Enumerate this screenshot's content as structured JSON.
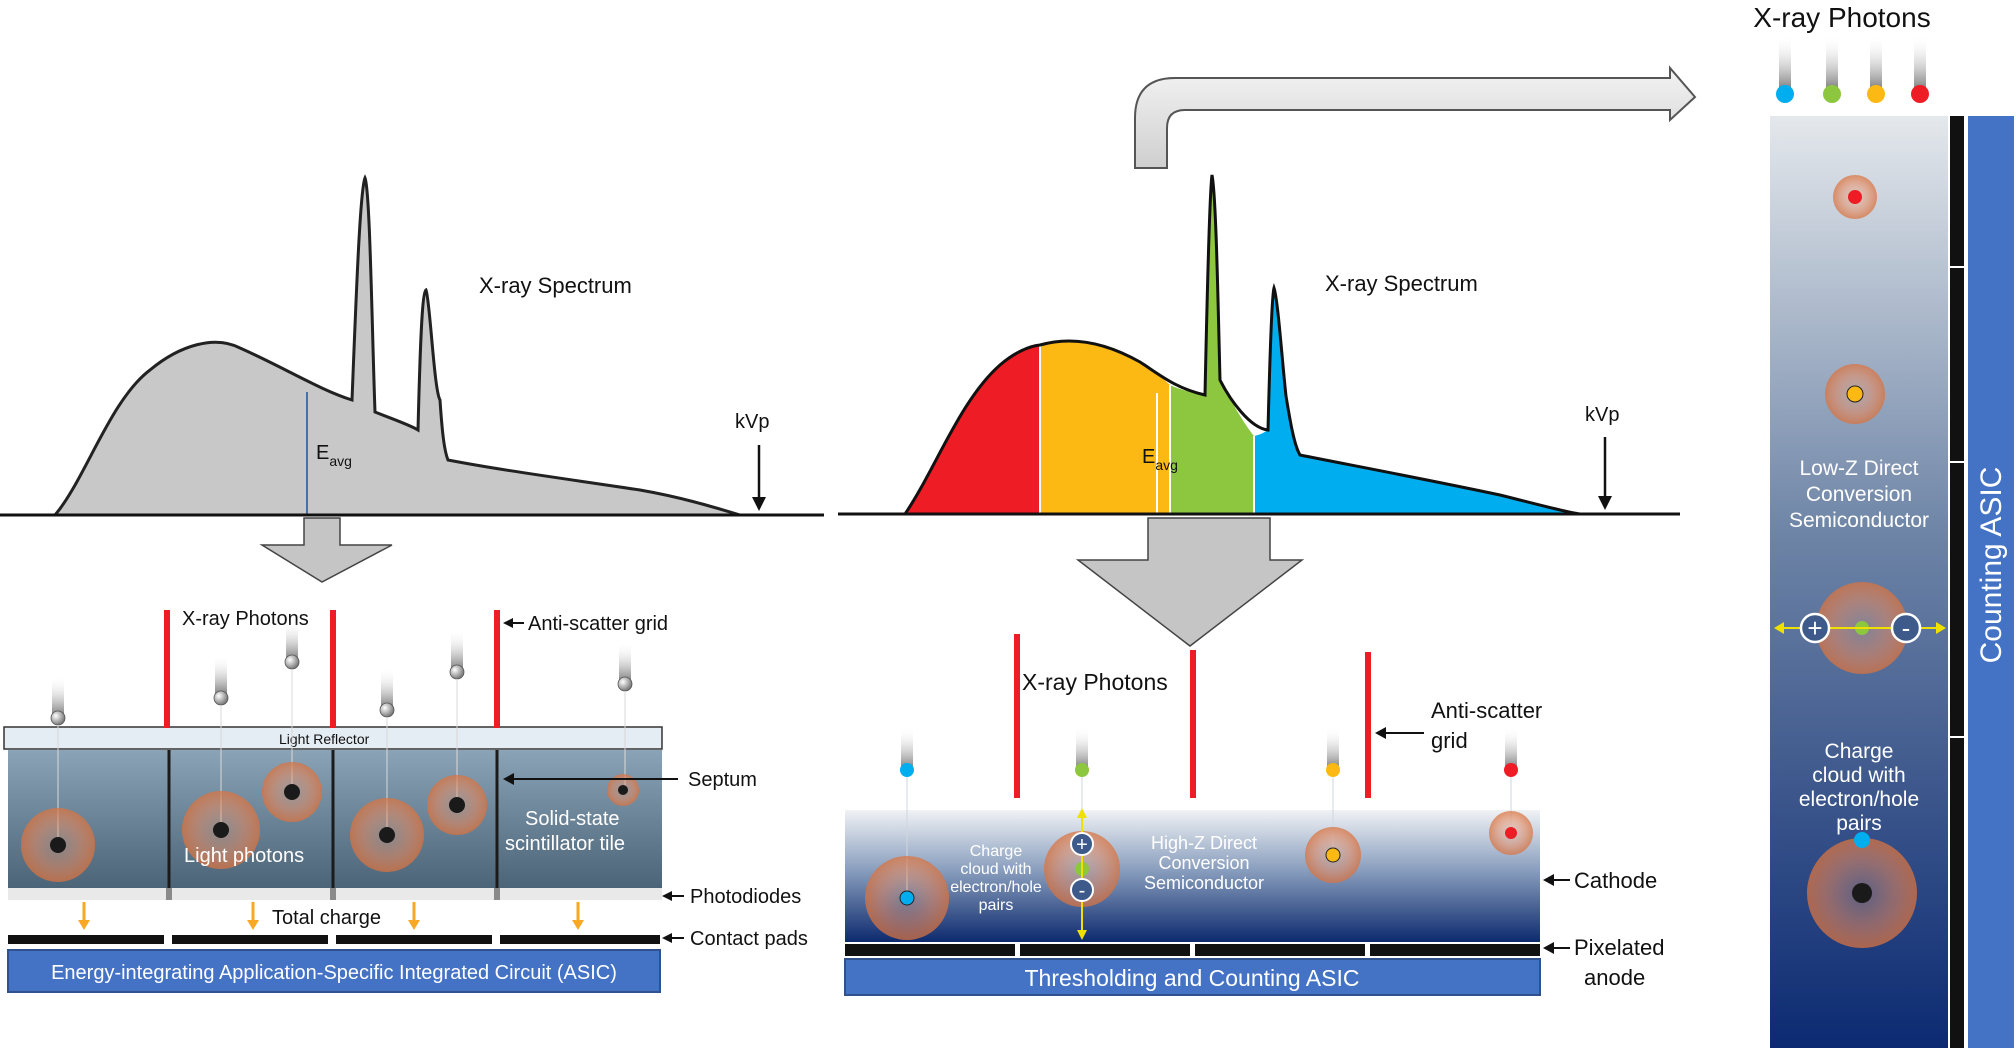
{
  "left_panel": {
    "spectrum_label": "X-ray Spectrum",
    "eavg_main": "E",
    "eavg_sub": "avg",
    "kvp_label": "kVp",
    "photons_label": "X-ray Photons",
    "antiscatter_label": "Anti-scatter grid",
    "light_reflector_label": "Light Reflector",
    "septum_label": "Septum",
    "light_photons_label": "Light photons",
    "scintillator_line1": "Solid-state",
    "scintillator_line2": "scintillator tile",
    "photodiodes_label": "Photodiodes",
    "total_charge_label": "Total charge",
    "contact_pads_label": "Contact pads",
    "asic_label": "Energy-integrating Application-Specific Integrated Circuit (ASIC)"
  },
  "middle_panel": {
    "spectrum_label": "X-ray Spectrum",
    "eavg_main": "E",
    "eavg_sub": "avg",
    "kvp_label": "kVp",
    "photons_label": "X-ray Photons",
    "antiscatter_line1": "Anti-scatter",
    "antiscatter_line2": "grid",
    "charge_cloud_lines": [
      "Charge",
      "cloud with",
      "electron/hole",
      "pairs"
    ],
    "semiconductor_lines": [
      "High-Z Direct",
      "Conversion",
      "Semiconductor"
    ],
    "cathode_label": "Cathode",
    "anode_line1": "Pixelated",
    "anode_line2": "anode",
    "asic_label": "Thresholding and Counting ASIC",
    "plus_sign": "+",
    "minus_sign": "-"
  },
  "right_panel": {
    "photons_label": "X-ray Photons",
    "semiconductor_lines": [
      "Low-Z Direct",
      "Conversion",
      "Semiconductor"
    ],
    "charge_cloud_lines": [
      "Charge",
      "cloud with",
      "electron/hole",
      "pairs"
    ],
    "asic_label": "Counting ASIC",
    "plus_sign": "+",
    "minus_sign": "-"
  },
  "colors": {
    "energy_bin_1": "#ee1c25",
    "energy_bin_2": "#fdb913",
    "energy_bin_3": "#8dc63f",
    "energy_bin_4": "#00aeef",
    "spectrum_gray": "#c8c8c8",
    "grid_red": "#ee1c25",
    "asic_blue": "#4472c4",
    "arrow_orange": "#f9a825"
  }
}
